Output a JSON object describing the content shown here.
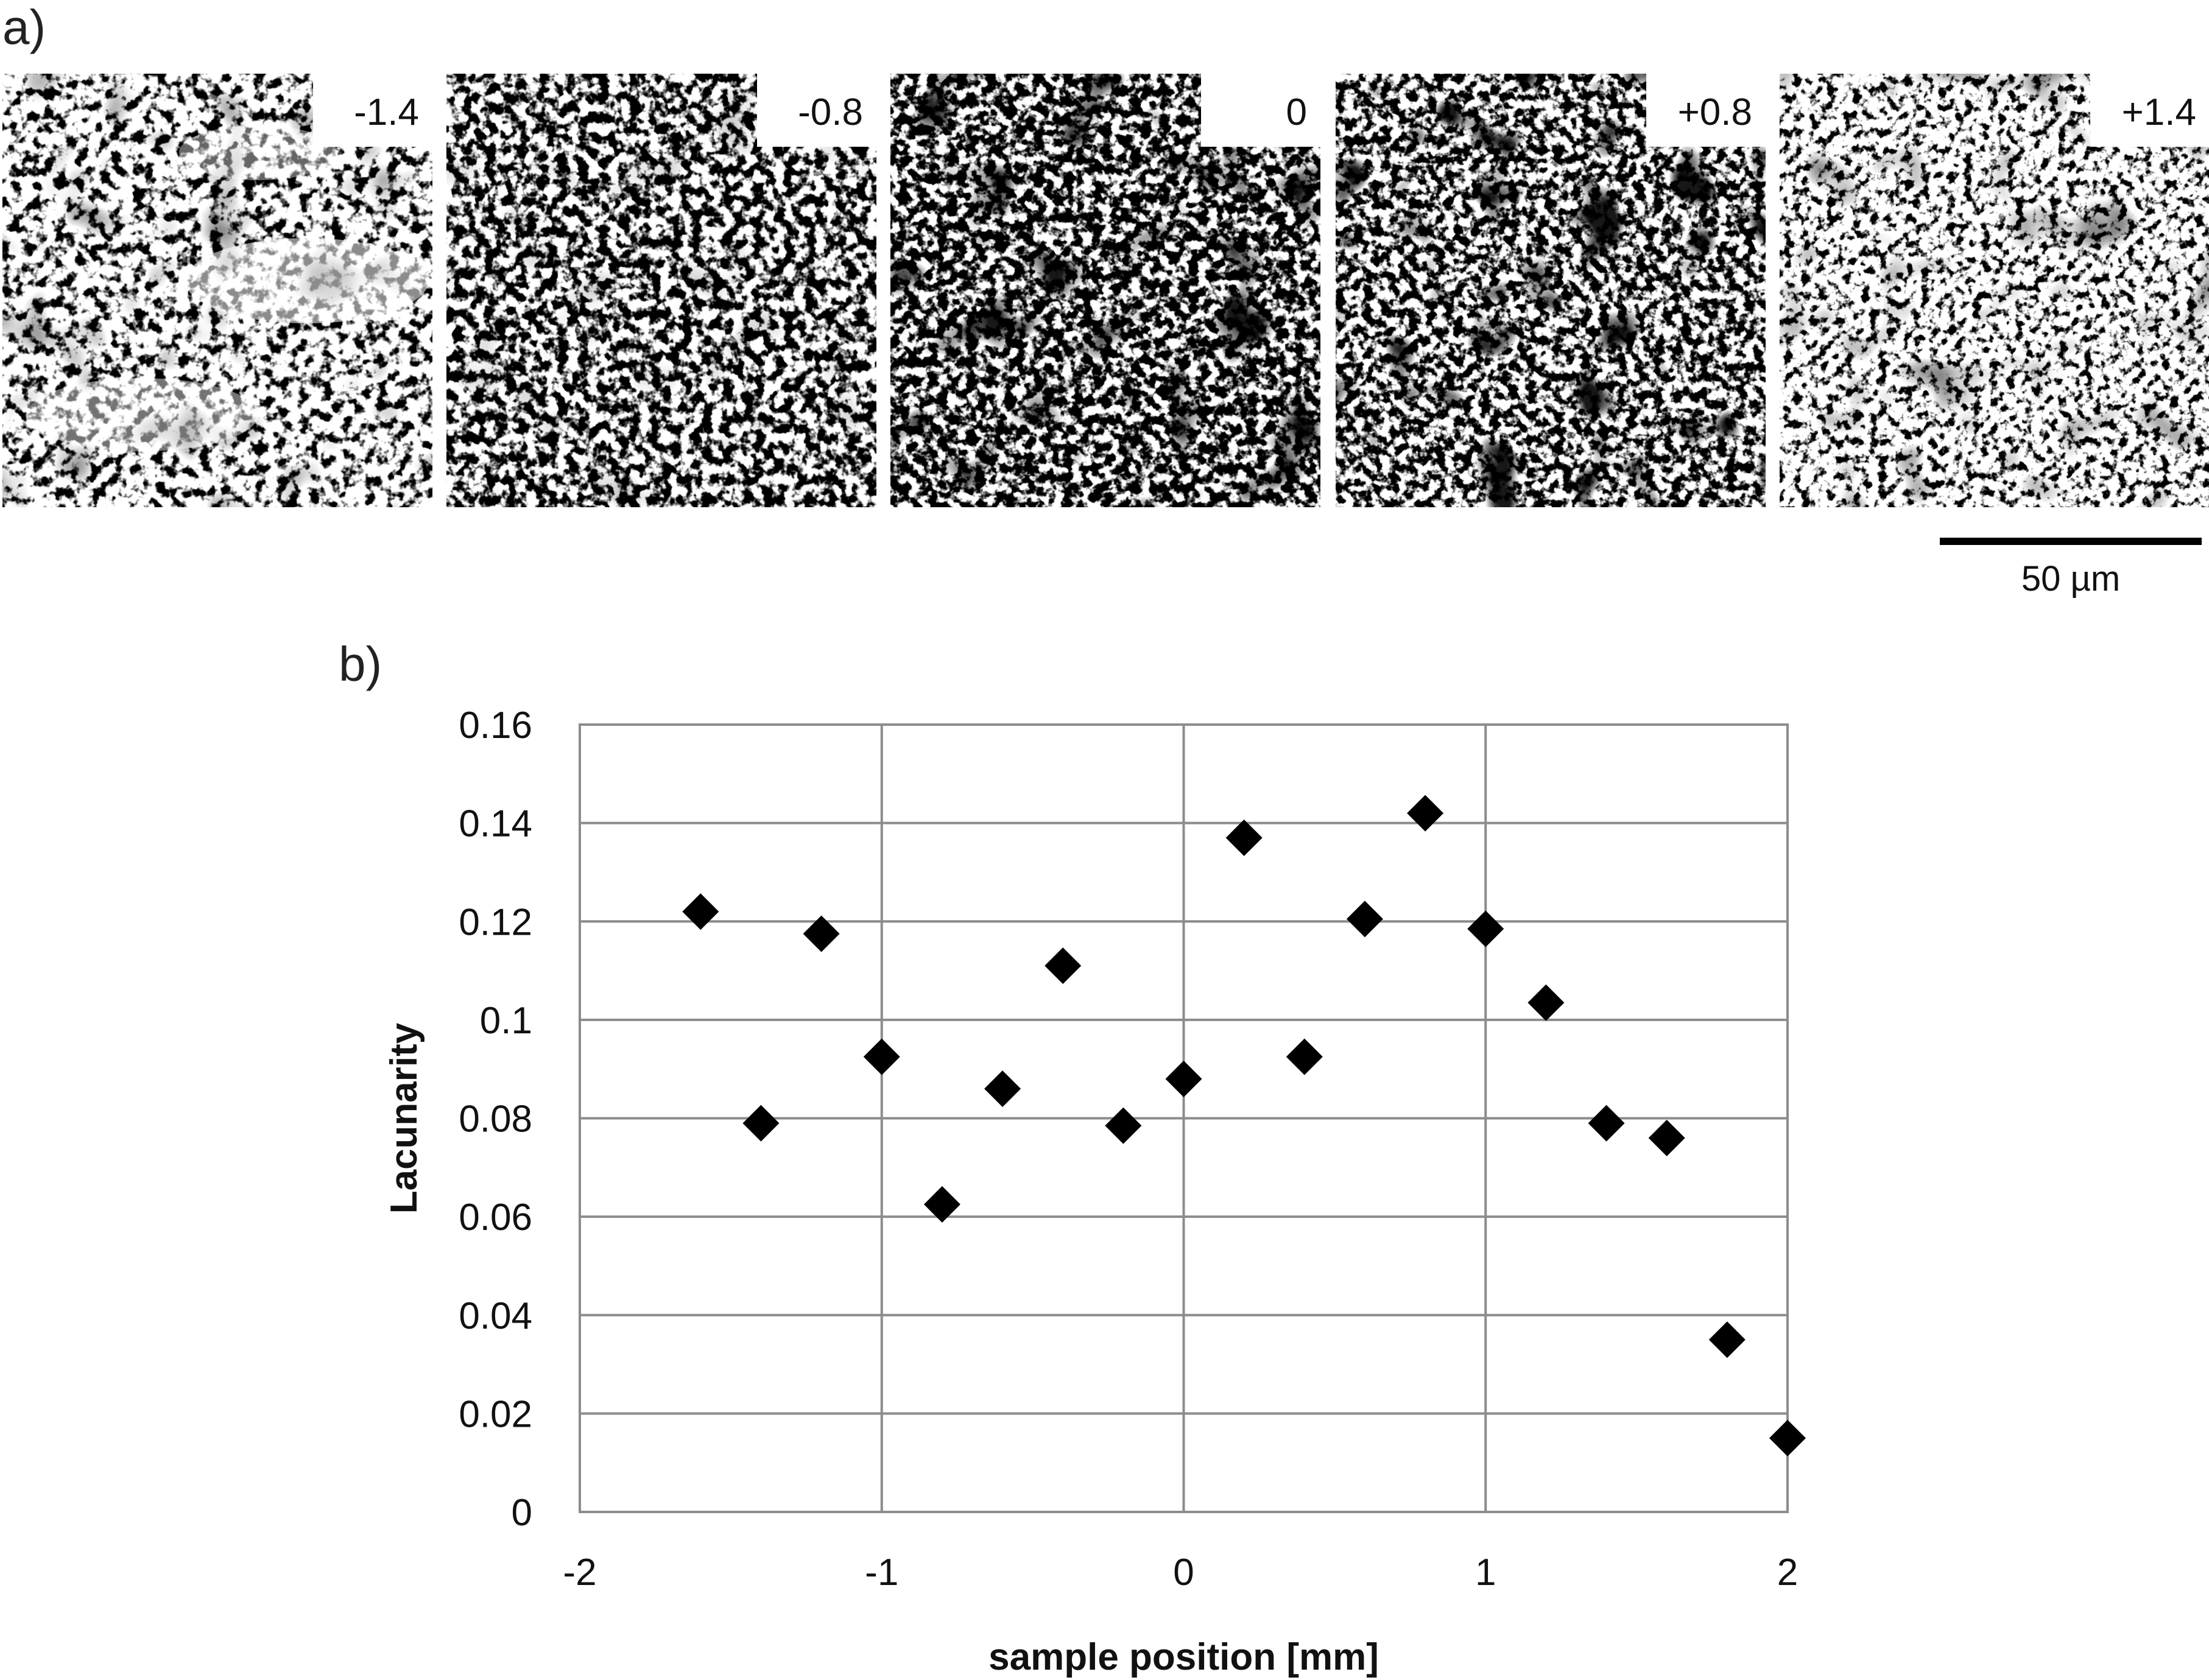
{
  "panel_a": {
    "label": "a)",
    "images": [
      {
        "label": "-1.4",
        "seed": 11,
        "density": 0.45,
        "blob": 0.22,
        "pale_band": true
      },
      {
        "label": "-0.8",
        "seed": 23,
        "density": 0.5,
        "blob": 0.1,
        "pale_band": false
      },
      {
        "label": "0",
        "seed": 37,
        "density": 0.52,
        "blob": 0.55,
        "pale_band": false
      },
      {
        "label": "+0.8",
        "seed": 51,
        "density": 0.5,
        "blob": 0.75,
        "pale_band": false
      },
      {
        "label": "+1.4",
        "seed": 67,
        "density": 0.44,
        "blob": 0.25,
        "pale_band": false
      }
    ],
    "scale_bar_label": "50 µm"
  },
  "panel_b": {
    "label": "b)"
  },
  "chart_data": {
    "type": "scatter",
    "xlabel": "sample position [mm]",
    "ylabel": "Lacunarity",
    "xlim": [
      -2,
      2
    ],
    "ylim": [
      0,
      0.16
    ],
    "xticks": [
      -2,
      -1,
      0,
      1,
      2
    ],
    "xtick_labels": [
      "-2",
      "-1",
      "0",
      "1",
      "2"
    ],
    "yticks": [
      0,
      0.02,
      0.04,
      0.06,
      0.08,
      0.1,
      0.12,
      0.14,
      0.16
    ],
    "ytick_labels": [
      "0",
      "0.02",
      "0.04",
      "0.06",
      "0.08",
      "0.1",
      "0.12",
      "0.14",
      "0.16"
    ],
    "grid": true,
    "marker": "diamond",
    "marker_color": "#000000",
    "grid_color": "#8c8c8c",
    "series": [
      {
        "points": [
          [
            -1.6,
            0.122
          ],
          [
            -1.4,
            0.079
          ],
          [
            -1.2,
            0.1175
          ],
          [
            -1.0,
            0.0925
          ],
          [
            -0.8,
            0.0625
          ],
          [
            -0.6,
            0.086
          ],
          [
            -0.4,
            0.111
          ],
          [
            -0.2,
            0.0785
          ],
          [
            0.0,
            0.088
          ],
          [
            0.2,
            0.137
          ],
          [
            0.4,
            0.0925
          ],
          [
            0.6,
            0.1205
          ],
          [
            0.8,
            0.142
          ],
          [
            1.0,
            0.1185
          ],
          [
            1.2,
            0.1035
          ],
          [
            1.4,
            0.079
          ],
          [
            1.6,
            0.076
          ],
          [
            1.8,
            0.035
          ],
          [
            2.0,
            0.015
          ]
        ]
      }
    ]
  }
}
